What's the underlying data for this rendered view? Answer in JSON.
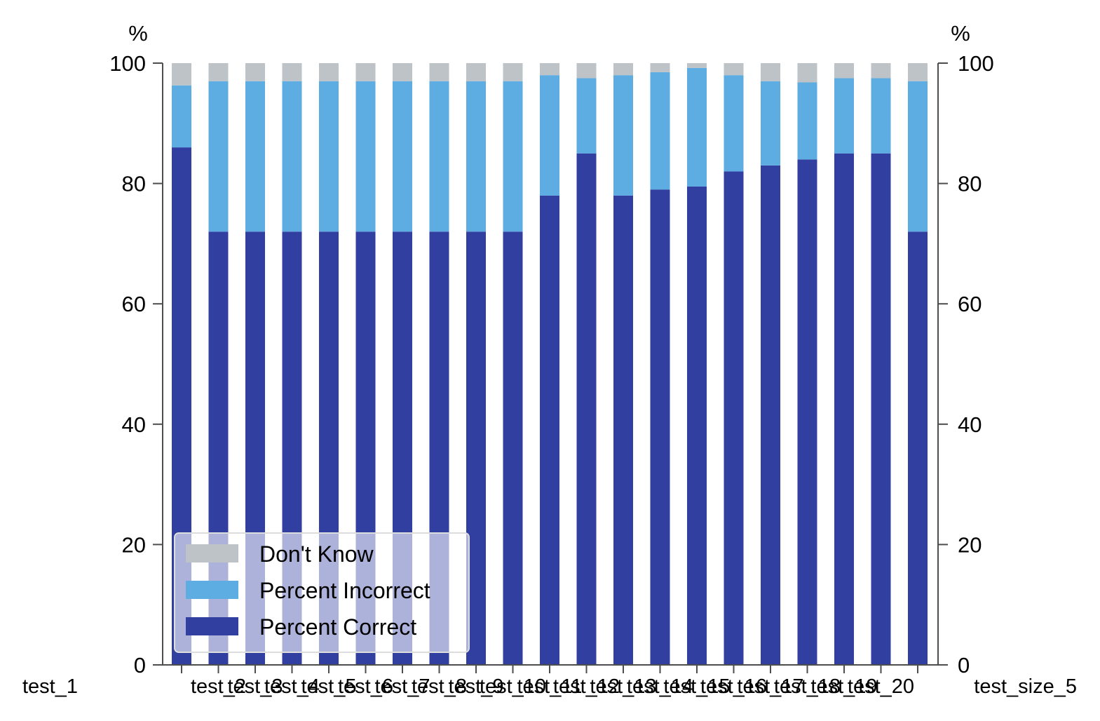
{
  "chart_data": {
    "type": "bar",
    "stacked": true,
    "categories": [
      "test_1",
      "test_2",
      "test_3",
      "test_4",
      "test_5",
      "test_6",
      "test_7",
      "test_8",
      "test_9",
      "test_10",
      "test_11",
      "test_12",
      "test_13",
      "test_14",
      "test_15",
      "test_16",
      "test_17",
      "test_18",
      "test_19",
      "test_20",
      "test_size_5"
    ],
    "series": [
      {
        "name": "Percent Correct",
        "color": "#313fa1",
        "values": [
          86,
          72,
          72,
          72,
          72,
          72,
          72,
          72,
          72,
          72,
          78,
          85,
          78,
          79,
          79.5,
          82,
          83,
          84,
          85,
          85,
          72
        ]
      },
      {
        "name": "Percent Incorrect",
        "color": "#5dade2",
        "values": [
          10.3,
          25,
          25,
          25,
          25,
          25,
          25,
          25,
          25,
          25,
          20,
          12.5,
          20,
          19.5,
          19.7,
          16,
          14,
          12.8,
          12.5,
          12.5,
          25
        ]
      },
      {
        "name": "Don't Know",
        "color": "#bdc3c7",
        "values": [
          3.7,
          3,
          3,
          3,
          3,
          3,
          3,
          3,
          3,
          3,
          2,
          2.5,
          2,
          1.5,
          0.8,
          2,
          3,
          3.2,
          2.5,
          2.5,
          3
        ]
      }
    ],
    "ylabel_left": "%",
    "ylabel_right": "%",
    "ylim": [
      0,
      100
    ],
    "yticks": [
      0,
      20,
      40,
      60,
      80,
      100
    ],
    "legend_order": [
      "Don't Know",
      "Percent Incorrect",
      "Percent Correct"
    ],
    "legend_position": "lower-left",
    "grid": false
  }
}
